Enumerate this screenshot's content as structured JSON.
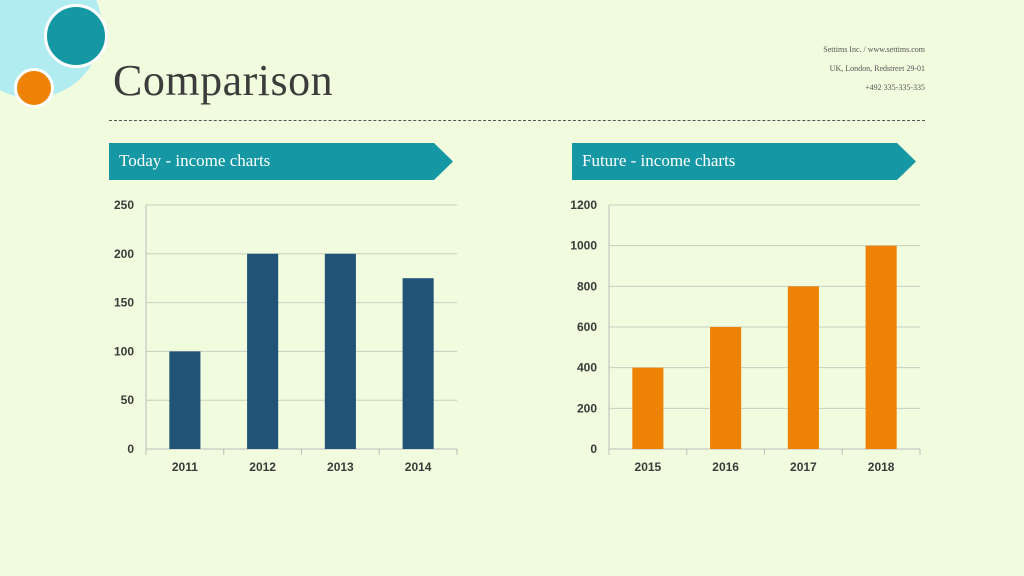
{
  "title": "Comparison",
  "contact": {
    "line1": "Settims Inc. / www.settims.com",
    "line2": "UK, London, Redstreet 29-01",
    "line3": "+492 335-335-335"
  },
  "colors": {
    "teal": "#1597a4",
    "navy": "#215377",
    "orange": "#ee8205",
    "background": "#f1fbde"
  },
  "chart_data": [
    {
      "type": "bar",
      "title": "Today - income charts",
      "categories": [
        "2011",
        "2012",
        "2013",
        "2014"
      ],
      "values": [
        100,
        200,
        200,
        175
      ],
      "ylim": [
        0,
        250
      ],
      "yticks": [
        0,
        50,
        100,
        150,
        200,
        250
      ],
      "color": "#215377",
      "grid": true
    },
    {
      "type": "bar",
      "title": "Future - income charts",
      "categories": [
        "2015",
        "2016",
        "2017",
        "2018"
      ],
      "values": [
        400,
        600,
        800,
        1000
      ],
      "ylim": [
        0,
        1200
      ],
      "yticks": [
        0,
        200,
        400,
        600,
        800,
        1000,
        1200
      ],
      "color": "#ee8205",
      "grid": true
    }
  ]
}
